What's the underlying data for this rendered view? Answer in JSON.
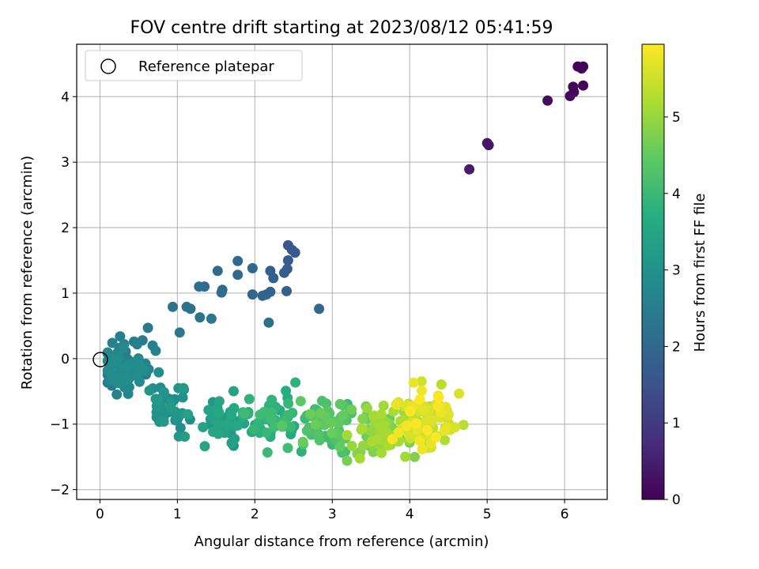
{
  "chart_data": {
    "type": "scatter",
    "title": "FOV centre drift starting at 2023/08/12 05:41:59",
    "xlabel": "Angular distance from reference (arcmin)",
    "ylabel": "Rotation from reference (arcmin)",
    "xlim": [
      -0.3,
      6.55
    ],
    "ylim": [
      -2.15,
      4.8
    ],
    "xticks": [
      0,
      1,
      2,
      3,
      4,
      5,
      6
    ],
    "yticks": [
      -2,
      -1,
      0,
      1,
      2,
      3,
      4
    ],
    "grid": true,
    "legend": {
      "position": "top-left",
      "entries": [
        "Reference platepar"
      ]
    },
    "reference_point": {
      "x": 0,
      "y": 0
    },
    "colorbar": {
      "label": "Hours from first FF file",
      "colormap": "viridis",
      "range": [
        0,
        5.95
      ],
      "ticks": [
        0,
        1,
        2,
        3,
        4,
        5
      ]
    },
    "cluster_seed": 20230812,
    "series": [
      {
        "points": [
          [
            6.17,
            4.46,
            0.05
          ],
          [
            6.24,
            4.46,
            0.06
          ],
          [
            6.22,
            4.43,
            0.07
          ],
          [
            6.11,
            4.15,
            0.1
          ],
          [
            6.24,
            4.17,
            0.12
          ],
          [
            6.12,
            4.07,
            0.14
          ],
          [
            6.07,
            4.01,
            0.15
          ],
          [
            5.78,
            3.94,
            0.2
          ],
          [
            5.0,
            3.29,
            0.35
          ],
          [
            5.02,
            3.26,
            0.36
          ],
          [
            4.77,
            2.89,
            0.45
          ],
          [
            2.43,
            1.73,
            1.6
          ],
          [
            2.48,
            1.66,
            1.62
          ],
          [
            2.52,
            1.62,
            1.65
          ],
          [
            2.43,
            1.5,
            1.7
          ],
          [
            2.38,
            1.31,
            1.75
          ],
          [
            2.42,
            1.37,
            1.76
          ],
          [
            2.2,
            1.34,
            1.8
          ],
          [
            2.24,
            1.23,
            1.82
          ],
          [
            2.41,
            1.03,
            1.85
          ],
          [
            2.2,
            1.02,
            1.88
          ],
          [
            2.15,
            0.98,
            1.9
          ],
          [
            2.1,
            0.96,
            1.92
          ],
          [
            1.97,
            0.98,
            1.95
          ],
          [
            1.97,
            1.38,
            1.98
          ],
          [
            1.78,
            1.49,
            2.0
          ],
          [
            1.78,
            1.28,
            2.02
          ],
          [
            1.52,
            1.34,
            2.05
          ],
          [
            1.58,
            1.05,
            2.08
          ],
          [
            1.57,
            1.01,
            2.1
          ],
          [
            1.35,
            1.1,
            2.12
          ],
          [
            1.28,
            1.1,
            2.15
          ],
          [
            2.18,
            0.55,
            2.18
          ],
          [
            2.83,
            0.76,
            2.0
          ],
          [
            1.12,
            0.79,
            2.2
          ],
          [
            1.17,
            0.76,
            2.22
          ],
          [
            0.94,
            0.79,
            2.25
          ],
          [
            1.29,
            0.63,
            2.28
          ],
          [
            1.44,
            0.61,
            2.3
          ],
          [
            1.03,
            0.4,
            2.35
          ],
          [
            0.62,
            0.47,
            2.4
          ],
          [
            0.55,
            0.28,
            2.45
          ],
          [
            0.48,
            0.22,
            2.5
          ],
          [
            0.26,
            0.34,
            2.55
          ],
          [
            0.16,
            0.24,
            2.58
          ],
          [
            0.68,
            0.2,
            2.6
          ],
          [
            0.72,
            0.12,
            2.62
          ]
        ]
      }
    ],
    "clusters": [
      {
        "n": 70,
        "cx": 0.35,
        "cy": -0.15,
        "sx": 0.2,
        "sy": 0.25,
        "t0": 2.45,
        "t1": 2.9
      },
      {
        "n": 40,
        "cx": 0.95,
        "cy": -0.75,
        "sx": 0.25,
        "sy": 0.28,
        "t0": 2.8,
        "t1": 3.2
      },
      {
        "n": 45,
        "cx": 1.55,
        "cy": -0.95,
        "sx": 0.28,
        "sy": 0.25,
        "t0": 3.1,
        "t1": 3.55
      },
      {
        "n": 55,
        "cx": 2.25,
        "cy": -0.95,
        "sx": 0.3,
        "sy": 0.28,
        "t0": 3.5,
        "t1": 4.1
      },
      {
        "n": 60,
        "cx": 2.95,
        "cy": -1.0,
        "sx": 0.3,
        "sy": 0.27,
        "t0": 4.0,
        "t1": 4.6
      },
      {
        "n": 75,
        "cx": 3.6,
        "cy": -1.15,
        "sx": 0.28,
        "sy": 0.27,
        "t0": 4.5,
        "t1": 5.2
      },
      {
        "n": 95,
        "cx": 4.2,
        "cy": -0.95,
        "sx": 0.3,
        "sy": 0.32,
        "t0": 5.1,
        "t1": 5.95
      }
    ]
  }
}
